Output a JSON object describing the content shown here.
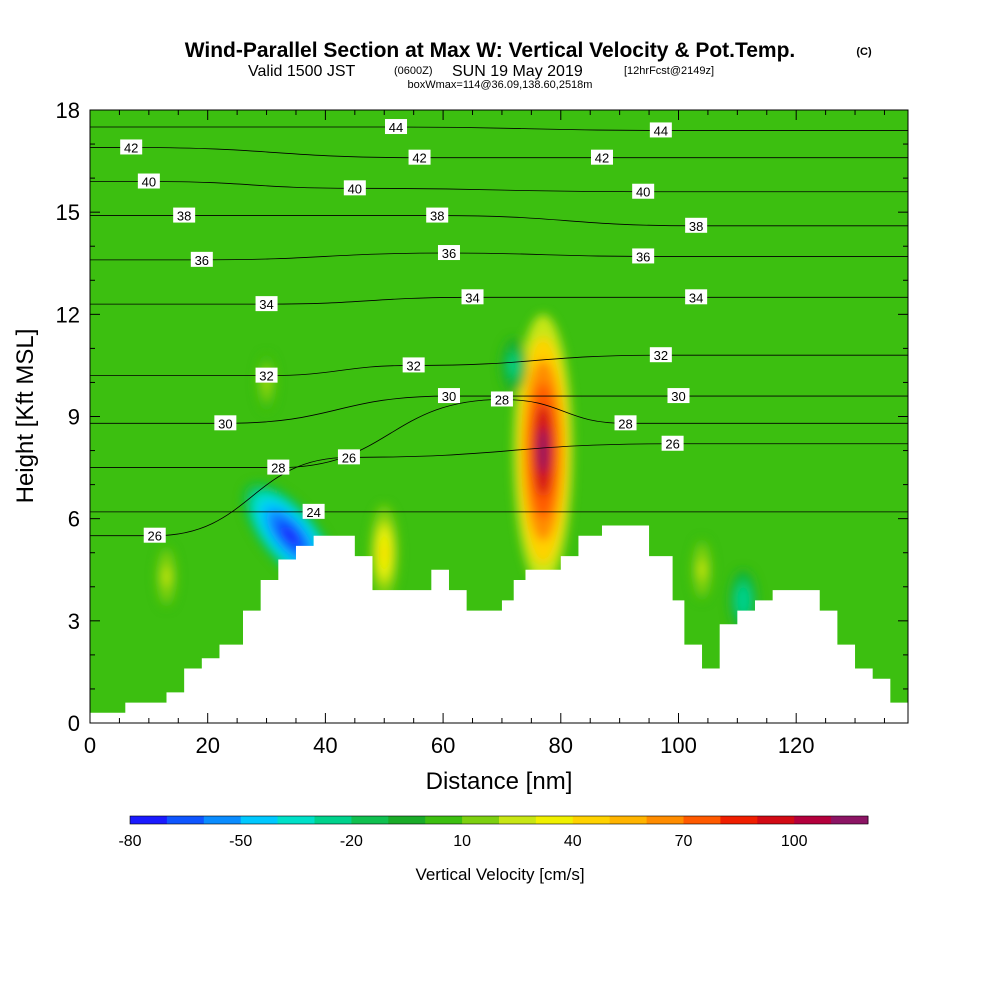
{
  "title": {
    "main": "Wind-Parallel Section at Max W: Vertical Velocity & Pot.Temp.",
    "copyright": "(C)",
    "valid_prefix": "Valid 1500 JST",
    "valid_utc": "(0600Z)",
    "valid_date": "SUN 19 May 2019",
    "forecast": "[12hrFcst@2149z]",
    "box_info": "boxWmax=114@36.09,138.60,2518m"
  },
  "colorbar": {
    "label": "Vertical Velocity [cm/s]",
    "tick_labels": [
      "-80",
      "-50",
      "-20",
      "10",
      "40",
      "70",
      "100"
    ],
    "tick_values": [
      -80,
      -50,
      -20,
      10,
      40,
      70,
      100
    ],
    "levels": [
      -80,
      -70,
      -60,
      -50,
      -40,
      -30,
      -20,
      -10,
      0,
      10,
      20,
      30,
      40,
      50,
      60,
      70,
      80,
      90,
      100,
      110,
      120
    ],
    "colors": [
      "#1a1aff",
      "#0f55ff",
      "#0a8cff",
      "#00c8ff",
      "#00e0c8",
      "#00d28c",
      "#10c050",
      "#1aab28",
      "#3cbf10",
      "#7dd010",
      "#c8e614",
      "#f0f000",
      "#ffd200",
      "#ffb400",
      "#ff8c00",
      "#ff5a00",
      "#f01e00",
      "#d20a14",
      "#b4003c",
      "#8c1464"
    ]
  },
  "chart_data": {
    "type": "heatmap",
    "title": "Wind-Parallel Section at Max W: Vertical Velocity & Pot.Temp.",
    "xlabel": "Distance [nm]",
    "ylabel": "Height [Kft MSL]",
    "xlim": [
      0,
      139
    ],
    "ylim": [
      0,
      18
    ],
    "x_ticks": [
      0,
      20,
      40,
      60,
      80,
      100,
      120
    ],
    "y_ticks": [
      0,
      3,
      6,
      9,
      12,
      15,
      18
    ],
    "filled_variable": "Vertical Velocity [cm/s]",
    "contour_variable": "Pot.Temp.",
    "terrain_profile": {
      "x": [
        0,
        3,
        6,
        11,
        13,
        16,
        19,
        22,
        26,
        29,
        32,
        35,
        38,
        41,
        45,
        48,
        54,
        58,
        61,
        64,
        67,
        70,
        72,
        74,
        77,
        80,
        83,
        87,
        92,
        95,
        99,
        101,
        104,
        107,
        110,
        113,
        116,
        119,
        124,
        127,
        130,
        133,
        136,
        139
      ],
      "y": [
        0.3,
        0.3,
        0.6,
        0.6,
        0.9,
        1.6,
        1.9,
        2.3,
        3.3,
        4.2,
        4.8,
        5.2,
        5.5,
        5.5,
        4.9,
        3.9,
        3.9,
        4.5,
        3.9,
        3.3,
        3.3,
        3.6,
        4.2,
        4.5,
        4.5,
        4.9,
        5.5,
        5.8,
        5.8,
        4.9,
        3.6,
        2.3,
        1.6,
        2.9,
        3.3,
        3.6,
        3.9,
        3.9,
        3.3,
        2.3,
        1.6,
        1.3,
        0.6,
        0.6
      ]
    },
    "w_features": [
      {
        "name": "max updraft",
        "x": 77,
        "y": 8,
        "value": 114
      },
      {
        "name": "downdraft",
        "x": 34,
        "y": 5.5,
        "value": -80
      },
      {
        "name": "updraft",
        "x": 50,
        "y": 5,
        "value": 45
      },
      {
        "name": "updraft",
        "x": 13,
        "y": 4.3,
        "value": 25
      },
      {
        "name": "updraft",
        "x": 104,
        "y": 4.5,
        "value": 25
      },
      {
        "name": "updraft",
        "x": 30,
        "y": 10,
        "value": 22
      },
      {
        "name": "downdraft",
        "x": 111,
        "y": 3.6,
        "value": -30
      },
      {
        "name": "downdraft",
        "x": 72,
        "y": 10.5,
        "value": -25
      }
    ],
    "theta_contours": [
      {
        "label": "24",
        "label_x": 38,
        "label_y": 6.2
      },
      {
        "label": "26",
        "label_x": 11,
        "label_y": 5.5
      },
      {
        "label": "26",
        "label_x": 44,
        "label_y": 7.8
      },
      {
        "label": "26",
        "label_x": 99,
        "label_y": 8.2
      },
      {
        "label": "28",
        "label_x": 32,
        "label_y": 7.5
      },
      {
        "label": "28",
        "label_x": 70,
        "label_y": 9.5
      },
      {
        "label": "28",
        "label_x": 91,
        "label_y": 8.8
      },
      {
        "label": "30",
        "label_x": 23,
        "label_y": 8.8
      },
      {
        "label": "30",
        "label_x": 61,
        "label_y": 9.6
      },
      {
        "label": "30",
        "label_x": 100,
        "label_y": 9.6
      },
      {
        "label": "32",
        "label_x": 30,
        "label_y": 10.2
      },
      {
        "label": "32",
        "label_x": 55,
        "label_y": 10.5
      },
      {
        "label": "32",
        "label_x": 97,
        "label_y": 10.8
      },
      {
        "label": "34",
        "label_x": 30,
        "label_y": 12.3
      },
      {
        "label": "34",
        "label_x": 65,
        "label_y": 12.5
      },
      {
        "label": "34",
        "label_x": 103,
        "label_y": 12.5
      },
      {
        "label": "36",
        "label_x": 19,
        "label_y": 13.6
      },
      {
        "label": "36",
        "label_x": 61,
        "label_y": 13.8
      },
      {
        "label": "36",
        "label_x": 94,
        "label_y": 13.7
      },
      {
        "label": "38",
        "label_x": 16,
        "label_y": 14.9
      },
      {
        "label": "38",
        "label_x": 59,
        "label_y": 14.9
      },
      {
        "label": "38",
        "label_x": 103,
        "label_y": 14.6
      },
      {
        "label": "40",
        "label_x": 10,
        "label_y": 15.9
      },
      {
        "label": "40",
        "label_x": 45,
        "label_y": 15.7
      },
      {
        "label": "40",
        "label_x": 94,
        "label_y": 15.6
      },
      {
        "label": "42",
        "label_x": 7,
        "label_y": 16.9
      },
      {
        "label": "42",
        "label_x": 56,
        "label_y": 16.6
      },
      {
        "label": "42",
        "label_x": 87,
        "label_y": 16.6
      },
      {
        "label": "44",
        "label_x": 52,
        "label_y": 17.5
      },
      {
        "label": "44",
        "label_x": 97,
        "label_y": 17.4
      }
    ]
  }
}
